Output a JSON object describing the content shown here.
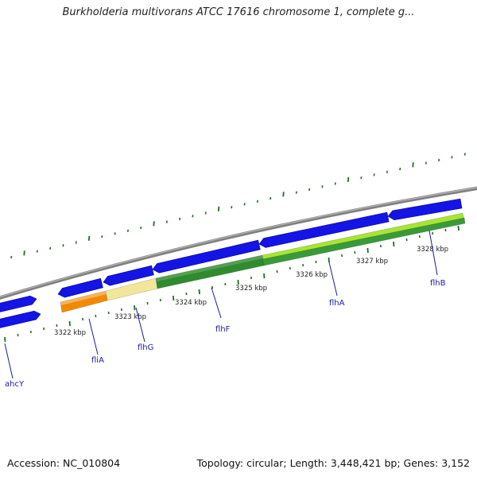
{
  "title": "Burkholderia multivorans ATCC 17616 chromosome 1, complete g...",
  "footer": {
    "accession": "Accession: NC_010804",
    "summary": "Topology: circular; Length: 3,448,421 bp; Genes: 3,152"
  },
  "colors": {
    "cds_forward": "#1414e6",
    "backbone": "#808080",
    "tick": "#1e6e1e",
    "fliA_segment": "#f28a00",
    "flhG_segment": "#f2e69a",
    "flhF_segment": "#2e8b2e",
    "flhA_segment": "#a6e632",
    "label": "#1a1aa8"
  },
  "scale_labels": [
    "3322 kbp",
    "3323 kbp",
    "3324 kbp",
    "3325 kbp",
    "3326 kbp",
    "3327 kbp",
    "3328 kbp"
  ],
  "genes": [
    {
      "name": "ahcY"
    },
    {
      "name": "fliA"
    },
    {
      "name": "flhG"
    },
    {
      "name": "flhF"
    },
    {
      "name": "flhA"
    },
    {
      "name": "flhB"
    }
  ]
}
